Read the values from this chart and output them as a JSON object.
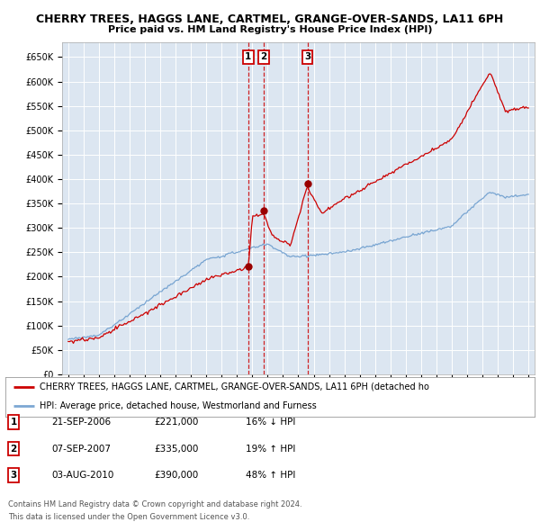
{
  "title_line1": "CHERRY TREES, HAGGS LANE, CARTMEL, GRANGE-OVER-SANDS, LA11 6PH",
  "title_line2": "Price paid vs. HM Land Registry's House Price Index (HPI)",
  "background_color": "#dce6f1",
  "hpi_color": "#6699cc",
  "price_color": "#cc0000",
  "vline_color": "#cc0000",
  "box_edge_color": "#cc0000",
  "legend_line1": "CHERRY TREES, HAGGS LANE, CARTMEL, GRANGE-OVER-SANDS, LA11 6PH (detached ho",
  "legend_line2": "HPI: Average price, detached house, Westmorland and Furness",
  "sale_dates": [
    2006.73,
    2007.72,
    2010.59
  ],
  "sale_prices": [
    221000,
    335000,
    390000
  ],
  "sale_labels": [
    "1",
    "2",
    "3"
  ],
  "annotation_rows": [
    [
      "1",
      "21-SEP-2006",
      "£221,000",
      "16% ↓ HPI"
    ],
    [
      "2",
      "07-SEP-2007",
      "£335,000",
      "19% ↑ HPI"
    ],
    [
      "3",
      "03-AUG-2010",
      "£390,000",
      "48% ↑ HPI"
    ]
  ],
  "footer_line1": "Contains HM Land Registry data © Crown copyright and database right 2024.",
  "footer_line2": "This data is licensed under the Open Government Licence v3.0."
}
